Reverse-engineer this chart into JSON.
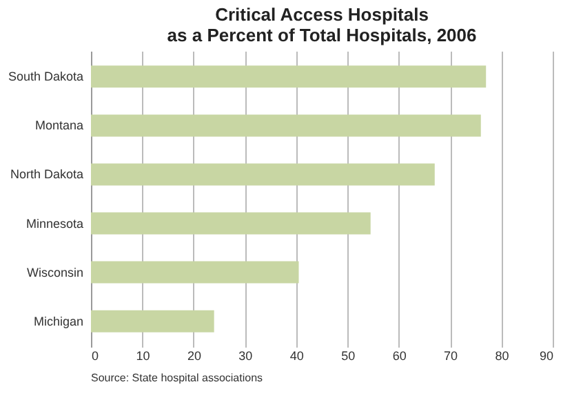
{
  "chart_data": {
    "type": "bar",
    "orientation": "horizontal",
    "title": [
      "Critical Access Hospitals",
      "as a Percent of Total Hospitals, 2006"
    ],
    "categories": [
      "South Dakota",
      "Montana",
      "North Dakota",
      "Minnesota",
      "Wisconsin",
      "Michigan"
    ],
    "values": [
      77,
      76,
      67,
      54.5,
      40.5,
      24
    ],
    "color": "#c8d6a3",
    "xlim": [
      0,
      90
    ],
    "xticks": [
      0,
      10,
      20,
      30,
      40,
      50,
      60,
      70,
      80,
      90
    ],
    "grid": "x",
    "annotations": [
      "Source: State hospital associations"
    ]
  }
}
